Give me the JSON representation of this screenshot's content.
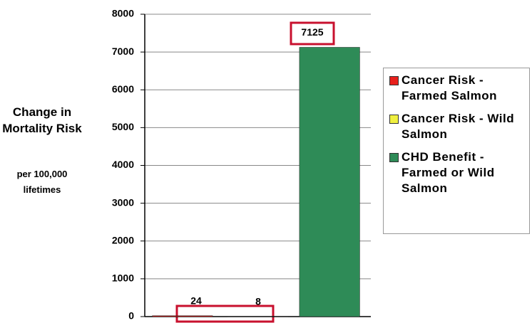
{
  "chart_data": {
    "type": "bar",
    "ylabel": "Change in Mortality Risk",
    "ylabel_sub": "per 100,000 lifetimes",
    "categories": [
      null,
      null,
      null
    ],
    "series": [
      {
        "name": "Cancer Risk - Farmed Salmon",
        "color": "#e8201c",
        "values": [
          24,
          null,
          null
        ]
      },
      {
        "name": "Cancer Risk - Wild Salmon",
        "color": "#f0f040",
        "values": [
          null,
          8,
          null
        ]
      },
      {
        "name": "CHD Benefit - Farmed or Wild Salmon",
        "color": "#2e8b57",
        "values": [
          null,
          null,
          7125
        ]
      }
    ],
    "ylim": [
      0,
      8000
    ],
    "yticks": [
      0,
      1000,
      2000,
      3000,
      4000,
      5000,
      6000,
      7000,
      8000
    ],
    "grid": true
  }
}
